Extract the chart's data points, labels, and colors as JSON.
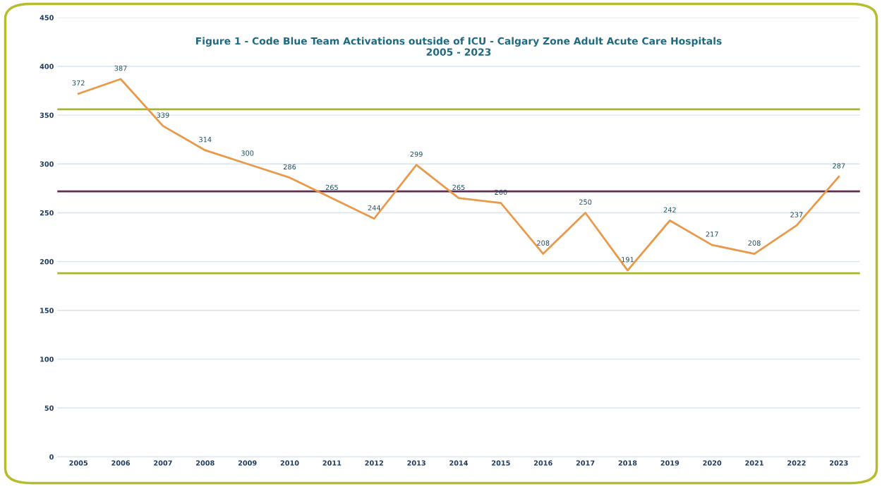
{
  "chart_data": {
    "type": "line",
    "title": "Figure 1 - Code Blue Team Activations outside of ICU - Calgary Zone Adult Acute Care Hospitals\n2005 - 2023",
    "categories": [
      "2005",
      "2006",
      "2007",
      "2008",
      "2009",
      "2010",
      "2011",
      "2012",
      "2013",
      "2014",
      "2015",
      "2016",
      "2017",
      "2018",
      "2019",
      "2020",
      "2021",
      "2022",
      "2023"
    ],
    "series": [
      {
        "color": "#e8994a",
        "values": [
          372,
          387,
          339,
          314,
          300,
          286,
          265,
          244,
          299,
          265,
          260,
          208,
          250,
          191,
          242,
          217,
          208,
          237,
          287
        ]
      }
    ],
    "ylim": [
      0,
      450
    ],
    "yticks": [
      0,
      50,
      100,
      150,
      200,
      250,
      300,
      350,
      400,
      450
    ],
    "grid": "y",
    "marker": "none",
    "line_style": "solid",
    "data_labels": true,
    "legend": false,
    "ref_lines": [
      {
        "axis": "y",
        "value": 356,
        "color": "#a9b42a"
      },
      {
        "axis": "y",
        "value": 272,
        "color": "#5e2d4f"
      },
      {
        "axis": "y",
        "value": 188,
        "color": "#a9b42a"
      }
    ]
  }
}
